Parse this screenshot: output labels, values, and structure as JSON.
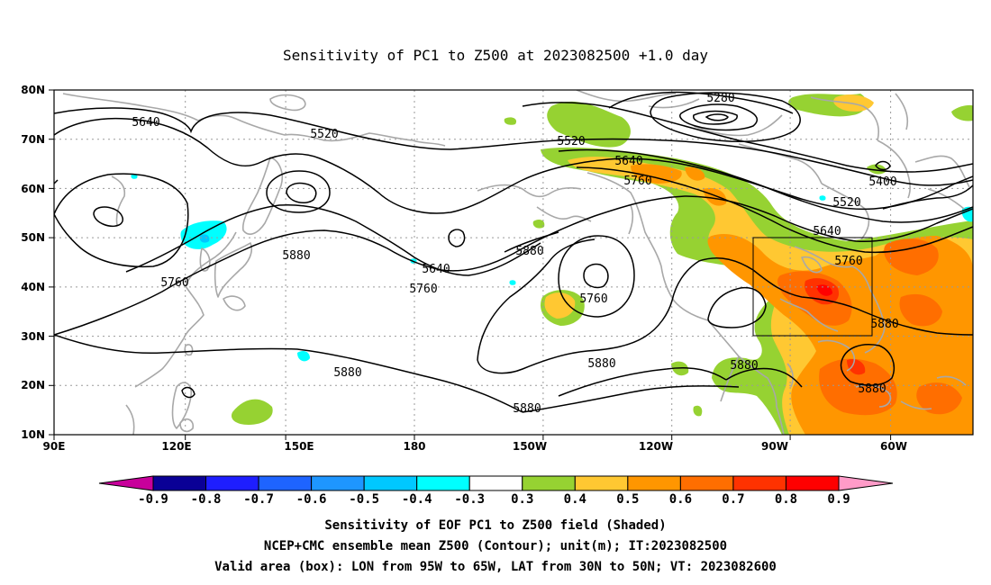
{
  "title": "Sensitivity of PC1 to Z500 at 2023082500 +1.0 day",
  "lat_labels": [
    "80N",
    "70N",
    "60N",
    "50N",
    "40N",
    "30N",
    "20N",
    "10N"
  ],
  "lon_labels": [
    "90E",
    "120E",
    "150E",
    "180",
    "150W",
    "120W",
    "90W",
    "60W"
  ],
  "contour_labels": [
    "5280",
    "5400",
    "5520",
    "5520",
    "5520",
    "5640",
    "5640",
    "5640",
    "5640",
    "5760",
    "5760",
    "5760",
    "5760",
    "5760",
    "5880",
    "5880",
    "5880",
    "5880",
    "5880",
    "5880",
    "5880",
    "5880"
  ],
  "colorbar": {
    "ticks": [
      "-0.9",
      "-0.8",
      "-0.7",
      "-0.6",
      "-0.5",
      "-0.4",
      "-0.3",
      "0.3",
      "0.4",
      "0.5",
      "0.6",
      "0.7",
      "0.8",
      "0.9"
    ],
    "colors": [
      "#0a0096",
      "#1e1eff",
      "#1e64ff",
      "#1e96ff",
      "#00c8ff",
      "#00ffff",
      "#ffffff",
      "#96d232",
      "#ffc832",
      "#ff9600",
      "#ff6e00",
      "#ff3200",
      "#ff0000"
    ],
    "low_cap_color": "#c8009b",
    "high_cap_color": "#ff9bc8"
  },
  "footer": {
    "line1": "Sensitivity of EOF PC1 to Z500 field (Shaded)",
    "line2": "NCEP+CMC ensemble mean Z500 (Contour); unit(m); IT:2023082500",
    "line3": "Valid area (box): LON from 95W to 65W, LAT from 30N to 50N; VT: 2023082600"
  }
}
